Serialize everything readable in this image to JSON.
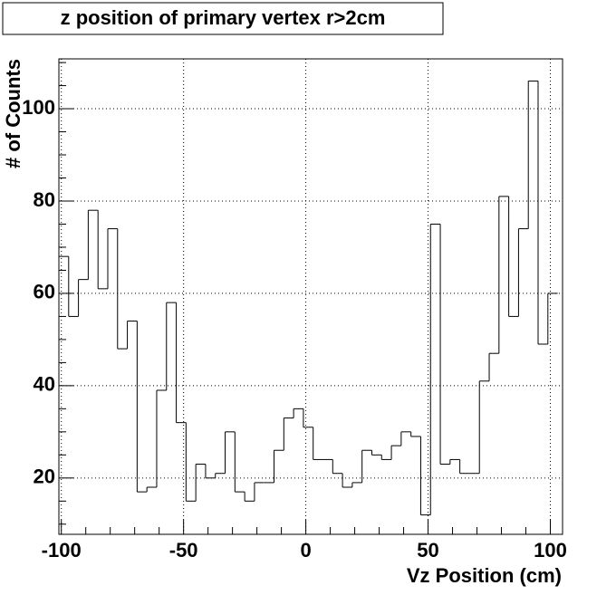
{
  "chart_data": {
    "type": "histogram",
    "title": "z position of primary vertex r>2cm",
    "x_label": "Vz Position (cm)",
    "y_label": "# of Counts",
    "bins": [
      -101,
      -97,
      -93,
      -89,
      -85,
      -81,
      -77,
      -73,
      -69,
      -65,
      -61,
      -57,
      -53,
      -49,
      -45,
      -41,
      -37,
      -33,
      -29,
      -25,
      -21,
      -17,
      -13,
      -9,
      -5,
      -1,
      3,
      7,
      11,
      15,
      19,
      23,
      27,
      31,
      35,
      39,
      43,
      47,
      51,
      55,
      59,
      63,
      67,
      71,
      75,
      79,
      83,
      87,
      91,
      95,
      99,
      103
    ],
    "values": [
      68,
      55,
      63,
      78,
      61,
      74,
      48,
      54,
      17,
      18,
      39,
      58,
      32,
      15,
      23,
      20,
      21,
      30,
      17,
      15,
      19,
      19,
      26,
      33,
      35,
      31,
      24,
      24,
      21,
      18,
      19,
      26,
      25,
      24,
      27,
      30,
      29,
      12,
      75,
      23,
      24,
      21,
      21,
      41,
      47,
      81,
      55,
      74,
      106,
      49,
      60
    ],
    "color": "#000000",
    "xlim": [
      -101,
      105
    ],
    "ylim": [
      7.8,
      110.8
    ],
    "xticks": [
      -100,
      -50,
      0,
      50,
      100
    ],
    "yticks": [
      20,
      40,
      60,
      80,
      100
    ],
    "xticks_minor": [
      -90,
      -80,
      -70,
      -60,
      -40,
      -30,
      -20,
      -10,
      10,
      20,
      30,
      40,
      60,
      70,
      80,
      90
    ],
    "yticks_minor": [
      10,
      15,
      25,
      30,
      35,
      45,
      50,
      55,
      65,
      70,
      75,
      85,
      90,
      95,
      105,
      110
    ],
    "grid": true
  }
}
